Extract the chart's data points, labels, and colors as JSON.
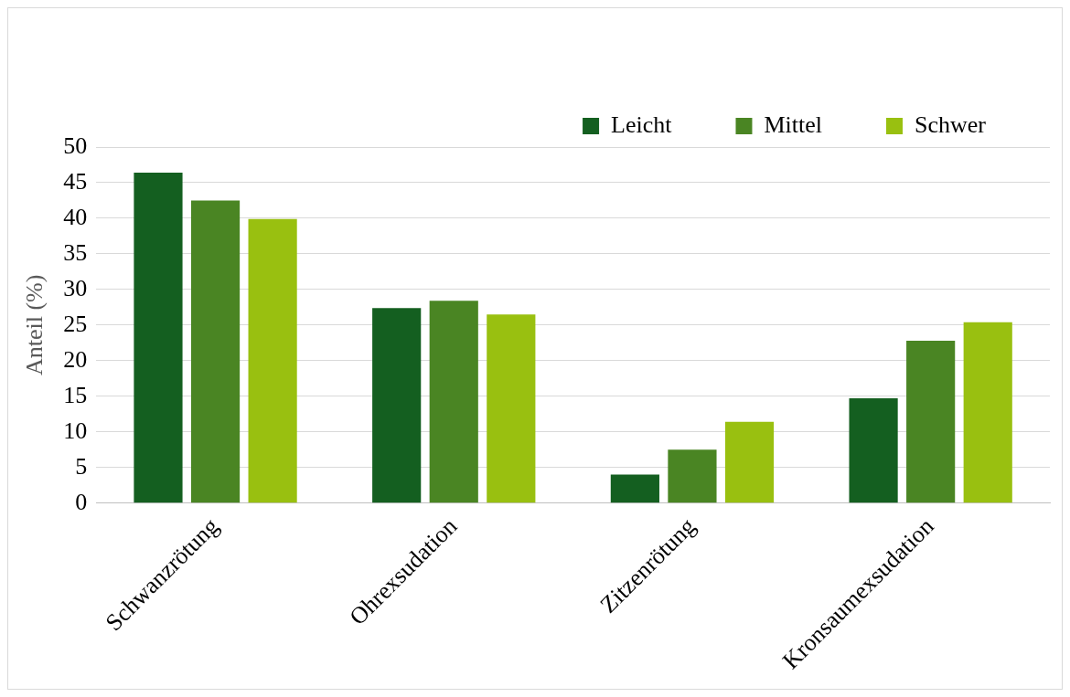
{
  "chart_data": {
    "type": "bar",
    "ylabel": "Anteil (%)",
    "categories": [
      "Schwanzrötung",
      "Ohrexsudation",
      "Zitzenrötung",
      "Kronsaumexsudation"
    ],
    "series": [
      {
        "name": "Leicht",
        "color": "#145f20",
        "values": [
          46.4,
          27.4,
          4.0,
          14.7
        ]
      },
      {
        "name": "Mittel",
        "color": "#4a8523",
        "values": [
          42.5,
          28.4,
          7.5,
          22.8
        ]
      },
      {
        "name": "Schwer",
        "color": "#99c010",
        "values": [
          39.9,
          26.5,
          11.4,
          25.4
        ]
      }
    ],
    "ylim": [
      0,
      50
    ],
    "yticks": [
      0,
      5,
      10,
      15,
      20,
      25,
      30,
      35,
      40,
      45,
      50
    ],
    "grid": "y",
    "legend": "top right"
  }
}
